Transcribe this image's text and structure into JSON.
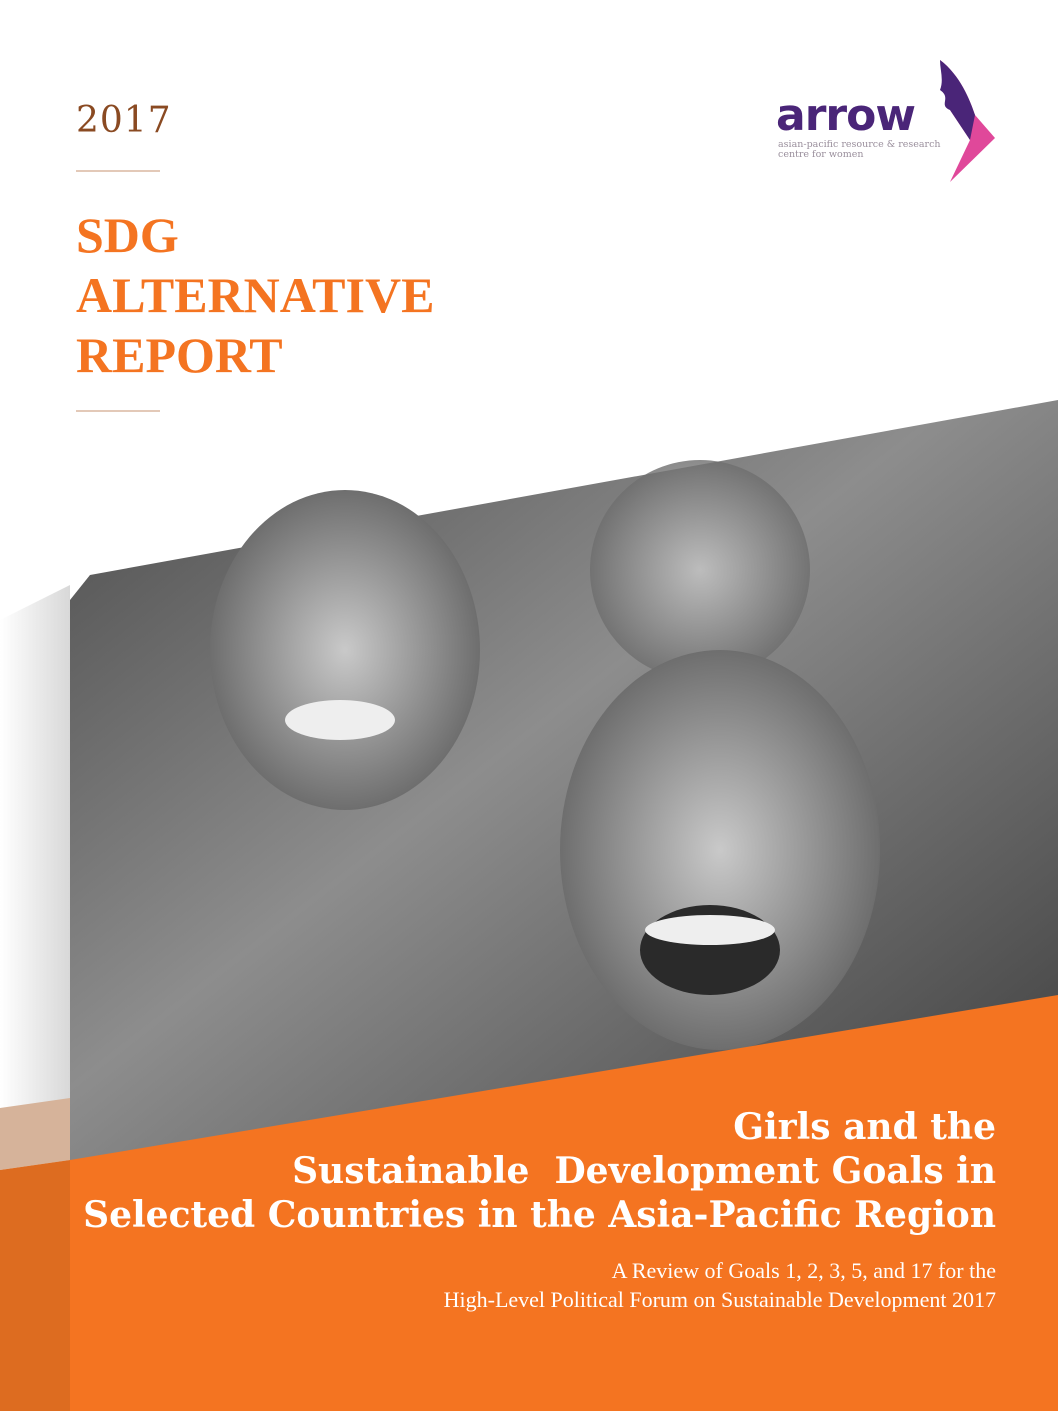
{
  "cover": {
    "year": "2017",
    "title_lines": [
      "SDG",
      "ALTERNATIVE",
      "REPORT"
    ],
    "headline_lines": [
      "Girls and the",
      "Sustainable  Development Goals in",
      "Selected Countries in the Asia-Pacific Region"
    ],
    "subtitle_lines": [
      "A Review of Goals 1, 2, 3, 5, and 17 for the",
      "High-Level Political Forum on Sustainable Development 2017"
    ]
  },
  "logo": {
    "wordmark": "arrow",
    "tagline_lines": [
      "asian-pacific resource & research",
      "centre for women"
    ]
  },
  "colors": {
    "accent_orange": "#f47421",
    "title_orange": "#f47421",
    "logo_purple": "#4a2578",
    "logo_pink": "#e0489a",
    "year_brown": "#8a4a22"
  },
  "photo": {
    "description_icon": "photo-of-laughing-girls"
  }
}
